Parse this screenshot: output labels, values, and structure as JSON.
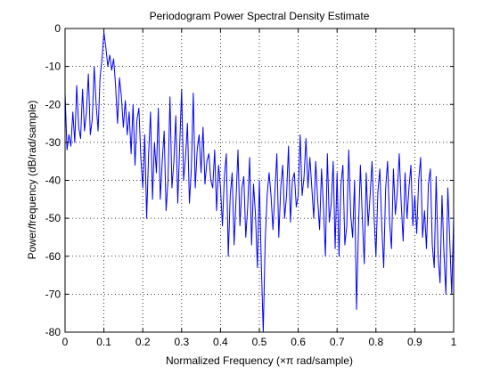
{
  "chart_data": {
    "type": "line",
    "title": "Periodogram Power Spectral Density Estimate",
    "xlabel": "Normalized Frequency  (×π rad/sample)",
    "ylabel": "Power/frequency  (dB/rad/sample)",
    "xlim": [
      0,
      1
    ],
    "ylim": [
      -80,
      0
    ],
    "xticks": [
      "0",
      "0.1",
      "0.2",
      "0.3",
      "0.4",
      "0.5",
      "0.6",
      "0.7",
      "0.8",
      "0.9",
      "1"
    ],
    "yticks": [
      "0",
      "-10",
      "-20",
      "-30",
      "-40",
      "-50",
      "-60",
      "-70",
      "-80"
    ],
    "grid": "dotted",
    "line_color": "#0000ff",
    "series": [
      {
        "x": [
          0.0,
          0.005,
          0.01,
          0.015,
          0.02,
          0.025,
          0.03,
          0.035,
          0.04,
          0.045,
          0.05,
          0.055,
          0.06,
          0.065,
          0.07,
          0.075,
          0.08,
          0.085,
          0.09,
          0.095,
          0.1,
          0.105,
          0.11,
          0.115,
          0.12,
          0.125,
          0.13,
          0.135,
          0.14,
          0.145,
          0.15,
          0.155,
          0.16,
          0.165,
          0.17,
          0.175,
          0.18,
          0.185,
          0.19,
          0.195,
          0.2,
          0.205,
          0.21,
          0.215,
          0.22,
          0.225,
          0.23,
          0.235,
          0.24,
          0.245,
          0.25,
          0.255,
          0.26,
          0.265,
          0.27,
          0.275,
          0.28,
          0.285,
          0.29,
          0.295,
          0.3,
          0.305,
          0.31,
          0.315,
          0.32,
          0.325,
          0.33,
          0.335,
          0.34,
          0.345,
          0.35,
          0.355,
          0.36,
          0.365,
          0.37,
          0.375,
          0.38,
          0.385,
          0.39,
          0.395,
          0.4,
          0.405,
          0.41,
          0.415,
          0.42,
          0.425,
          0.43,
          0.435,
          0.44,
          0.445,
          0.45,
          0.455,
          0.46,
          0.465,
          0.47,
          0.475,
          0.48,
          0.485,
          0.49,
          0.495,
          0.5,
          0.505,
          0.51,
          0.515,
          0.52,
          0.525,
          0.53,
          0.535,
          0.54,
          0.545,
          0.55,
          0.555,
          0.56,
          0.565,
          0.57,
          0.575,
          0.58,
          0.585,
          0.59,
          0.595,
          0.6,
          0.605,
          0.61,
          0.615,
          0.62,
          0.625,
          0.63,
          0.635,
          0.64,
          0.645,
          0.65,
          0.655,
          0.66,
          0.665,
          0.67,
          0.675,
          0.68,
          0.685,
          0.69,
          0.695,
          0.7,
          0.705,
          0.71,
          0.715,
          0.72,
          0.725,
          0.73,
          0.735,
          0.74,
          0.745,
          0.75,
          0.755,
          0.76,
          0.765,
          0.77,
          0.775,
          0.78,
          0.785,
          0.79,
          0.795,
          0.8,
          0.805,
          0.81,
          0.815,
          0.82,
          0.825,
          0.83,
          0.835,
          0.84,
          0.845,
          0.85,
          0.855,
          0.86,
          0.865,
          0.87,
          0.875,
          0.88,
          0.885,
          0.89,
          0.895,
          0.9,
          0.905,
          0.91,
          0.915,
          0.92,
          0.925,
          0.93,
          0.935,
          0.94,
          0.945,
          0.95,
          0.955,
          0.96,
          0.965,
          0.97,
          0.975,
          0.98,
          0.985,
          0.99,
          0.995,
          1.0
        ],
        "y": [
          -17,
          -32,
          -28,
          -31,
          -22,
          -30,
          -15,
          -26,
          -29,
          -16,
          -27,
          -22,
          -12,
          -28,
          -24,
          -10,
          -20,
          -27,
          -13,
          -8,
          -1,
          -5,
          -10,
          -7,
          -11,
          -8,
          -15,
          -25,
          -13,
          -18,
          -26,
          -19,
          -28,
          -22,
          -33,
          -20,
          -36,
          -24,
          -21,
          -34,
          -42,
          -28,
          -50,
          -33,
          -22,
          -45,
          -30,
          -38,
          -21,
          -45,
          -35,
          -27,
          -48,
          -40,
          -18,
          -42,
          -35,
          -23,
          -46,
          -31,
          -16,
          -40,
          -34,
          -25,
          -46,
          -37,
          -17,
          -42,
          -32,
          -28,
          -38,
          -26,
          -41,
          -35,
          -33,
          -40,
          -42,
          -32,
          -48,
          -36,
          -42,
          -52,
          -39,
          -33,
          -60,
          -44,
          -38,
          -57,
          -45,
          -32,
          -52,
          -42,
          -39,
          -55,
          -47,
          -34,
          -57,
          -41,
          -49,
          -63,
          -40,
          -62,
          -80,
          -56,
          -44,
          -38,
          -44,
          -53,
          -43,
          -33,
          -55,
          -42,
          -36,
          -50,
          -44,
          -31,
          -51,
          -40,
          -38,
          -47,
          -44,
          -28,
          -44,
          -39,
          -29,
          -42,
          -34,
          -42,
          -50,
          -35,
          -45,
          -53,
          -37,
          -47,
          -60,
          -33,
          -51,
          -46,
          -35,
          -58,
          -38,
          -60,
          -41,
          -36,
          -57,
          -52,
          -32,
          -49,
          -55,
          -40,
          -74,
          -53,
          -36,
          -50,
          -62,
          -38,
          -52,
          -44,
          -35,
          -49,
          -60,
          -43,
          -37,
          -52,
          -63,
          -42,
          -35,
          -51,
          -58,
          -37,
          -49,
          -43,
          -33,
          -46,
          -56,
          -38,
          -50,
          -42,
          -36,
          -52,
          -44,
          -54,
          -40,
          -34,
          -55,
          -48,
          -58,
          -41,
          -37,
          -57,
          -63,
          -39,
          -60,
          -67,
          -44,
          -59,
          -70,
          -42,
          -56,
          -70,
          -50
        ]
      }
    ]
  }
}
